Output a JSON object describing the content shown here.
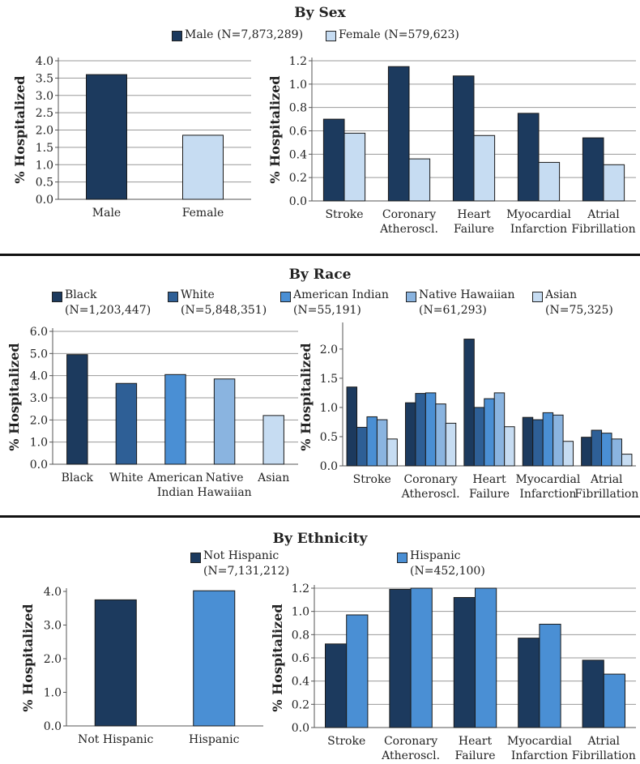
{
  "colors": {
    "black_race": "#1c3a5e",
    "white_race": "#2e5f96",
    "american_indian": "#4a8fd4",
    "native_hawaiian": "#8ab4e0",
    "asian": "#c6dcf2",
    "male": "#1c3a5e",
    "female": "#c6dcf2",
    "not_hispanic": "#1c3a5e",
    "hispanic": "#4a8fd4"
  },
  "sex": {
    "title": "By Sex",
    "legend": [
      {
        "label": "Male (N=7,873,289)",
        "color": "#1c3a5e"
      },
      {
        "label": "Female (N=579,623)",
        "color": "#c6dcf2"
      }
    ]
  },
  "race": {
    "title": "By Race",
    "legend": [
      {
        "line1": "Black",
        "line2": "(N=1,203,447)",
        "color": "#1c3a5e"
      },
      {
        "line1": "White",
        "line2": "(N=5,848,351)",
        "color": "#2e5f96"
      },
      {
        "line1": "American Indian",
        "line2": "(N=55,191)",
        "color": "#4a8fd4"
      },
      {
        "line1": "Native Hawaiian",
        "line2": "(N=61,293)",
        "color": "#8ab4e0"
      },
      {
        "line1": "Asian",
        "line2": "(N=75,325)",
        "color": "#c6dcf2"
      }
    ]
  },
  "ethnicity": {
    "title": "By Ethnicity",
    "legend": [
      {
        "line1": "Not Hispanic",
        "line2": "(N=7,131,212)",
        "color": "#1c3a5e"
      },
      {
        "line1": "Hispanic",
        "line2": "(N=452,100)",
        "color": "#4a8fd4"
      }
    ]
  },
  "chart_data": [
    {
      "id": "sex_overall",
      "type": "bar",
      "ylabel": "% Hospitalized",
      "ylim": [
        0,
        4.0
      ],
      "yticks": [
        "0.0",
        "0.5",
        "1.0",
        "1.5",
        "2.0",
        "2.5",
        "3.0",
        "3.5",
        "4.0"
      ],
      "grid": true,
      "categories": [
        [
          "Male"
        ],
        [
          "Female"
        ]
      ],
      "series": [
        {
          "values": [
            3.6,
            1.85
          ],
          "colors": [
            "#1c3a5e",
            "#c6dcf2"
          ]
        }
      ]
    },
    {
      "id": "sex_disease",
      "type": "bar",
      "ylabel": "% Hospitalized",
      "ylim": [
        0,
        1.2
      ],
      "yticks": [
        "0.0",
        "0.2",
        "0.4",
        "0.6",
        "0.8",
        "1.0",
        "1.2"
      ],
      "grid": true,
      "categories": [
        [
          "Stroke"
        ],
        [
          "Coronary",
          "Atheroscl."
        ],
        [
          "Heart",
          "Failure"
        ],
        [
          "Myocardial",
          "Infarction"
        ],
        [
          "Atrial",
          "Fibrillation"
        ]
      ],
      "series": [
        {
          "name": "Male (N=7,873,289)",
          "color": "#1c3a5e",
          "values": [
            0.7,
            1.15,
            1.07,
            0.75,
            0.54
          ]
        },
        {
          "name": "Female (N=579,623)",
          "color": "#c6dcf2",
          "values": [
            0.58,
            0.36,
            0.56,
            0.33,
            0.31
          ]
        }
      ]
    },
    {
      "id": "race_overall",
      "type": "bar",
      "ylabel": "% Hospitalized",
      "ylim": [
        0,
        6.0
      ],
      "yticks": [
        "0.0",
        "1.0",
        "2.0",
        "3.0",
        "4.0",
        "5.0",
        "6.0"
      ],
      "grid": true,
      "categories": [
        [
          "Black"
        ],
        [
          "White"
        ],
        [
          "American",
          "Indian"
        ],
        [
          "Native",
          "Hawaiian"
        ],
        [
          "Asian"
        ]
      ],
      "series": [
        {
          "values": [
            4.95,
            3.65,
            4.05,
            3.85,
            2.2
          ],
          "colors": [
            "#1c3a5e",
            "#2e5f96",
            "#4a8fd4",
            "#8ab4e0",
            "#c6dcf2"
          ]
        }
      ]
    },
    {
      "id": "race_disease",
      "type": "bar",
      "ylabel": "% Hospitalized",
      "ylim": [
        0,
        2.4
      ],
      "yticks": [
        "0.0",
        "0.5",
        "1.0",
        "1.5",
        "2.0"
      ],
      "grid": false,
      "categories": [
        [
          "Stroke"
        ],
        [
          "Coronary",
          "Atheroscl."
        ],
        [
          "Heart",
          "Failure"
        ],
        [
          "Myocardial",
          "Infarction"
        ],
        [
          "Atrial",
          "Fibrillation"
        ]
      ],
      "series": [
        {
          "name": "Black",
          "color": "#1c3a5e",
          "values": [
            1.35,
            1.08,
            2.17,
            0.83,
            0.49
          ]
        },
        {
          "name": "White",
          "color": "#2e5f96",
          "values": [
            0.66,
            1.24,
            1.0,
            0.79,
            0.61
          ]
        },
        {
          "name": "American Indian",
          "color": "#4a8fd4",
          "values": [
            0.84,
            1.25,
            1.15,
            0.91,
            0.56
          ]
        },
        {
          "name": "Native Hawaiian",
          "color": "#8ab4e0",
          "values": [
            0.79,
            1.06,
            1.25,
            0.87,
            0.46
          ]
        },
        {
          "name": "Asian",
          "color": "#c6dcf2",
          "values": [
            0.46,
            0.73,
            0.67,
            0.42,
            0.2
          ]
        }
      ]
    },
    {
      "id": "eth_overall",
      "type": "bar",
      "ylabel": "% Hospitalized",
      "ylim": [
        0,
        4.0
      ],
      "yticks": [
        "0.0",
        "1.0",
        "2.0",
        "3.0",
        "4.0"
      ],
      "grid": false,
      "categories": [
        [
          "Not Hispanic"
        ],
        [
          "Hispanic"
        ]
      ],
      "series": [
        {
          "values": [
            3.75,
            4.02
          ],
          "colors": [
            "#1c3a5e",
            "#4a8fd4"
          ]
        }
      ]
    },
    {
      "id": "eth_disease",
      "type": "bar",
      "ylabel": "% Hospitalized",
      "ylim": [
        0,
        1.2
      ],
      "yticks": [
        "0.0",
        "0.2",
        "0.4",
        "0.6",
        "0.8",
        "1.0",
        "1.2"
      ],
      "grid": true,
      "categories": [
        [
          "Stroke"
        ],
        [
          "Coronary",
          "Atheroscl."
        ],
        [
          "Heart",
          "Failure"
        ],
        [
          "Myocardial",
          "Infarction"
        ],
        [
          "Atrial",
          "Fibrillation"
        ]
      ],
      "series": [
        {
          "name": "Not Hispanic",
          "color": "#1c3a5e",
          "values": [
            0.72,
            1.19,
            1.12,
            0.77,
            0.58
          ]
        },
        {
          "name": "Hispanic",
          "color": "#4a8fd4",
          "values": [
            0.97,
            1.2,
            1.2,
            0.89,
            0.46
          ]
        }
      ]
    }
  ]
}
